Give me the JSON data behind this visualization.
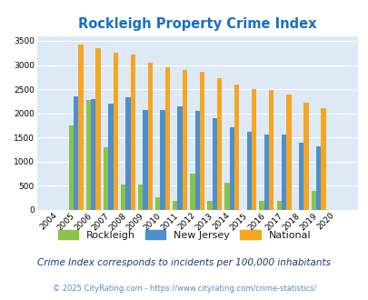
{
  "title": "Rockleigh Property Crime Index",
  "years": [
    2004,
    2005,
    2006,
    2007,
    2008,
    2009,
    2010,
    2011,
    2012,
    2013,
    2014,
    2015,
    2016,
    2017,
    2018,
    2019,
    2020
  ],
  "rockleigh": [
    0,
    1750,
    2280,
    1290,
    530,
    530,
    270,
    190,
    750,
    190,
    570,
    0,
    180,
    190,
    0,
    390,
    0
  ],
  "new_jersey": [
    0,
    2360,
    2300,
    2200,
    2330,
    2060,
    2070,
    2150,
    2050,
    1900,
    1720,
    1610,
    1560,
    1560,
    1400,
    1310,
    0
  ],
  "national": [
    0,
    3420,
    3350,
    3260,
    3210,
    3050,
    2960,
    2900,
    2860,
    2730,
    2600,
    2500,
    2480,
    2380,
    2220,
    2110,
    0
  ],
  "bar_width": 0.28,
  "ylim": [
    0,
    3600
  ],
  "yticks": [
    0,
    500,
    1000,
    1500,
    2000,
    2500,
    3000,
    3500
  ],
  "rockleigh_color": "#8bc34a",
  "nj_color": "#4e8fcd",
  "national_color": "#f5a623",
  "bg_color": "#ddeaf5",
  "grid_color": "#ffffff",
  "title_color": "#1a6fbe",
  "subtitle": "Crime Index corresponds to incidents per 100,000 inhabitants",
  "subtitle_color": "#1a3a6e",
  "footer": "© 2025 CityRating.com - https://www.cityrating.com/crime-statistics/",
  "footer_color": "#4e8fcd"
}
